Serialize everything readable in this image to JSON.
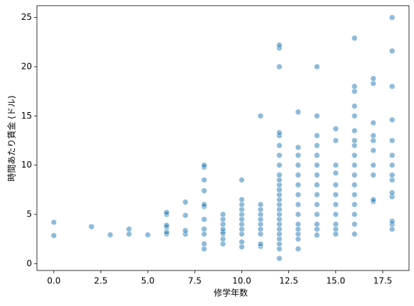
{
  "chart_data": {
    "type": "scatter",
    "x_label": "修学年数",
    "y_label": "時間あたり賃金 (ドル)",
    "color": "#1f77b4",
    "xlim": [
      -0.9,
      18.9
    ],
    "ylim": [
      -0.7,
      26.2
    ],
    "xticks": [
      {
        "value": 0,
        "label": "0.0"
      },
      {
        "value": 2.5,
        "label": "2.5"
      },
      {
        "value": 5,
        "label": "5.0"
      },
      {
        "value": 7.5,
        "label": "7.5"
      },
      {
        "value": 10,
        "label": "10.0"
      },
      {
        "value": 12.5,
        "label": "12.5"
      },
      {
        "value": 15,
        "label": "15.0"
      },
      {
        "value": 17.5,
        "label": "17.5"
      }
    ],
    "yticks": [
      0,
      5,
      10,
      15,
      20,
      25
    ],
    "x": [
      0,
      0,
      2,
      3,
      4,
      4,
      5,
      6,
      6,
      6,
      6,
      6,
      6,
      7,
      7,
      7,
      7,
      8,
      8,
      8,
      8,
      8,
      8,
      8,
      8,
      8,
      8,
      8,
      9,
      9,
      9,
      9,
      9,
      9,
      9,
      9,
      10,
      10,
      10,
      10,
      10,
      10,
      10,
      10,
      10,
      10,
      10,
      11,
      11,
      11,
      11,
      11,
      11,
      11,
      11,
      11,
      11,
      12,
      12,
      12,
      12,
      12,
      12,
      12,
      12,
      12,
      12,
      12,
      12,
      12,
      12,
      12,
      12,
      12,
      12,
      12,
      12,
      12,
      12,
      12,
      12,
      12,
      13,
      13,
      13,
      13,
      13,
      13,
      13,
      13,
      13,
      13,
      13,
      13,
      13,
      13,
      14,
      14,
      14,
      14,
      14,
      14,
      14,
      14,
      14,
      14,
      14,
      14,
      14,
      14,
      15,
      15,
      15,
      15,
      15,
      15,
      15,
      15,
      15,
      15,
      15,
      16,
      16,
      16,
      16,
      16,
      16,
      16,
      16,
      16,
      16,
      16,
      16,
      16,
      16,
      16,
      16,
      16,
      17,
      17,
      17,
      17,
      17,
      17,
      17,
      17,
      17,
      17,
      18,
      18,
      18,
      18,
      18,
      18,
      18,
      18,
      18,
      18,
      18,
      18,
      18,
      18
    ],
    "y": [
      4.2,
      2.85,
      3.75,
      2.92,
      3.0,
      3.5,
      2.92,
      3.0,
      3.2,
      3.7,
      3.9,
      5.0,
      5.2,
      3.0,
      3.35,
      4.9,
      6.25,
      1.5,
      2.0,
      3.0,
      3.5,
      4.5,
      5.8,
      6.0,
      7.4,
      8.5,
      9.8,
      10.0,
      2.0,
      2.5,
      3.0,
      3.2,
      3.5,
      4.0,
      4.5,
      5.0,
      1.7,
      2.2,
      3.0,
      3.5,
      4.0,
      4.5,
      5.0,
      5.5,
      6.0,
      6.5,
      8.5,
      1.75,
      2.0,
      3.0,
      3.5,
      4.0,
      4.5,
      5.0,
      5.5,
      6.0,
      15.0,
      0.53,
      1.5,
      2.0,
      2.5,
      3.0,
      3.5,
      4.0,
      4.5,
      5.0,
      5.5,
      6.0,
      6.5,
      7.0,
      7.5,
      8.0,
      8.5,
      9.0,
      10.0,
      11.0,
      12.0,
      13.0,
      13.3,
      20.0,
      21.9,
      22.2,
      1.5,
      2.5,
      3.0,
      3.5,
      4.0,
      5.0,
      6.0,
      7.0,
      8.0,
      9.0,
      10.0,
      11.0,
      11.8,
      15.4,
      2.9,
      3.5,
      4.0,
      5.0,
      6.0,
      7.0,
      8.0,
      9.0,
      10.0,
      11.0,
      12.0,
      13.0,
      15.0,
      20.0,
      3.0,
      3.5,
      4.0,
      5.0,
      6.0,
      7.0,
      8.0,
      9.2,
      10.0,
      12.5,
      13.7,
      3.0,
      4.0,
      5.0,
      6.0,
      7.0,
      8.0,
      9.0,
      10.0,
      11.0,
      12.0,
      12.5,
      13.5,
      15.0,
      16.0,
      17.5,
      18.0,
      22.9,
      6.3,
      6.5,
      9.0,
      10.0,
      11.5,
      12.5,
      13.0,
      14.3,
      18.3,
      18.8,
      3.5,
      4.0,
      4.3,
      6.8,
      7.2,
      8.5,
      9.0,
      10.0,
      11.0,
      12.5,
      14.6,
      18.0,
      21.6,
      25.0
    ]
  }
}
